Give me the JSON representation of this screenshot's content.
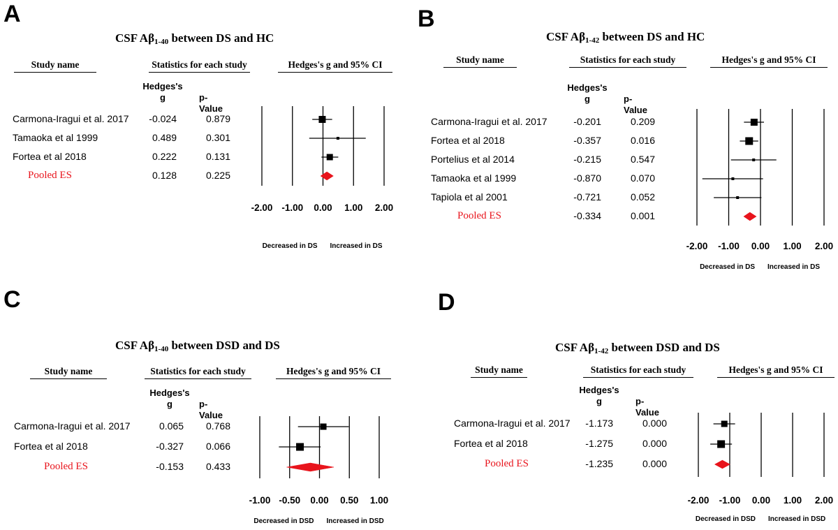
{
  "headers": {
    "study": "Study name",
    "stats": "Statistics for each study",
    "ci": "Hedges's g and 95% CI",
    "g_line1": "Hedges's",
    "g_line2": "g",
    "pvalue": "p-Value"
  },
  "chart_data": [
    {
      "id": "A",
      "type": "forest",
      "letter": "A",
      "title_main": "CSF Aβ",
      "title_sub": "1-40",
      "title_rest": " between DS and HC",
      "rows": [
        {
          "study": "Carmona-Iragui et al. 2017",
          "g": "-0.024",
          "p": "0.879",
          "value": -0.024,
          "lo": -0.35,
          "hi": 0.3,
          "size": 10
        },
        {
          "study": "Tamaoka et al 1999",
          "g": "0.489",
          "p": "0.301",
          "value": 0.489,
          "lo": -0.45,
          "hi": 1.4,
          "size": 4
        },
        {
          "study": "Fortea et al 2018",
          "g": "0.222",
          "p": "0.131",
          "value": 0.222,
          "lo": -0.05,
          "hi": 0.5,
          "size": 9
        }
      ],
      "pooled": {
        "label": "Pooled ES",
        "g": "0.128",
        "p": "0.225",
        "value": 0.128,
        "lo": -0.08,
        "hi": 0.34
      },
      "xticks": [
        "-2.00",
        "-1.00",
        "0.00",
        "1.00",
        "2.00"
      ],
      "xrange": [
        -2,
        2
      ],
      "dir_left": "Decreased in DS",
      "dir_right": "Increased in DS"
    },
    {
      "id": "B",
      "type": "forest",
      "letter": "B",
      "title_main": "CSF Aβ",
      "title_sub": "1-42",
      "title_rest": " between DS and HC",
      "rows": [
        {
          "study": "Carmona-Iragui et al. 2017",
          "g": "-0.201",
          "p": "0.209",
          "value": -0.201,
          "lo": -0.52,
          "hi": 0.11,
          "size": 10
        },
        {
          "study": "Fortea et al 2018",
          "g": "-0.357",
          "p": "0.016",
          "value": -0.357,
          "lo": -0.65,
          "hi": -0.07,
          "size": 11
        },
        {
          "study": "Portelius et al 2014",
          "g": "-0.215",
          "p": "0.547",
          "value": -0.215,
          "lo": -0.93,
          "hi": 0.5,
          "size": 4
        },
        {
          "study": "Tamaoka et al 1999",
          "g": "-0.870",
          "p": "0.070",
          "value": -0.87,
          "lo": -1.83,
          "hi": 0.08,
          "size": 4
        },
        {
          "study": "Tapiola et al 2001",
          "g": "-0.721",
          "p": "0.052",
          "value": -0.721,
          "lo": -1.47,
          "hi": 0.03,
          "size": 4
        }
      ],
      "pooled": {
        "label": "Pooled ES",
        "g": "-0.334",
        "p": "0.001",
        "value": -0.334,
        "lo": -0.53,
        "hi": -0.13
      },
      "xticks": [
        "-2.00",
        "-1.00",
        "0.00",
        "1.00",
        "2.00"
      ],
      "xrange": [
        -2,
        2
      ],
      "dir_left": "Decreased in DS",
      "dir_right": "Increased in DS"
    },
    {
      "id": "C",
      "type": "forest",
      "letter": "C",
      "title_main": "CSF Aβ",
      "title_sub": "1-40",
      "title_rest": " between DSD and DS",
      "rows": [
        {
          "study": "Carmona-Iragui et al. 2017",
          "g": "0.065",
          "p": "0.768",
          "value": 0.065,
          "lo": -0.36,
          "hi": 0.49,
          "size": 9
        },
        {
          "study": "Fortea et al 2018",
          "g": "-0.327",
          "p": "0.066",
          "value": -0.327,
          "lo": -0.68,
          "hi": 0.02,
          "size": 11
        }
      ],
      "pooled": {
        "label": "Pooled ES",
        "g": "-0.153",
        "p": "0.433",
        "value": -0.153,
        "lo": -0.55,
        "hi": 0.24
      },
      "xticks": [
        "-1.00",
        "-0.50",
        "0.00",
        "0.50",
        "1.00"
      ],
      "xrange": [
        -1,
        1
      ],
      "dir_left": "Decreased in DSD",
      "dir_right": "Increased in DSD"
    },
    {
      "id": "D",
      "type": "forest",
      "letter": "D",
      "title_main": "CSF Aβ",
      "title_sub": "1-42",
      "title_rest": " between DSD and DS",
      "rows": [
        {
          "study": "Carmona-Iragui et al. 2017",
          "g": "-1.173",
          "p": "0.000",
          "value": -1.173,
          "lo": -1.52,
          "hi": -0.83,
          "size": 9
        },
        {
          "study": "Fortea et al 2018",
          "g": "-1.275",
          "p": "0.000",
          "value": -1.275,
          "lo": -1.62,
          "hi": -0.93,
          "size": 11
        }
      ],
      "pooled": {
        "label": "Pooled ES",
        "g": "-1.235",
        "p": "0.000",
        "value": -1.235,
        "lo": -1.48,
        "hi": -0.99
      },
      "xticks": [
        "-2.00",
        "-1.00",
        "0.00",
        "1.00",
        "2.00"
      ],
      "xrange": [
        -2,
        2
      ],
      "dir_left": "Decreased in DSD",
      "dir_right": "Increased in DSD"
    }
  ]
}
